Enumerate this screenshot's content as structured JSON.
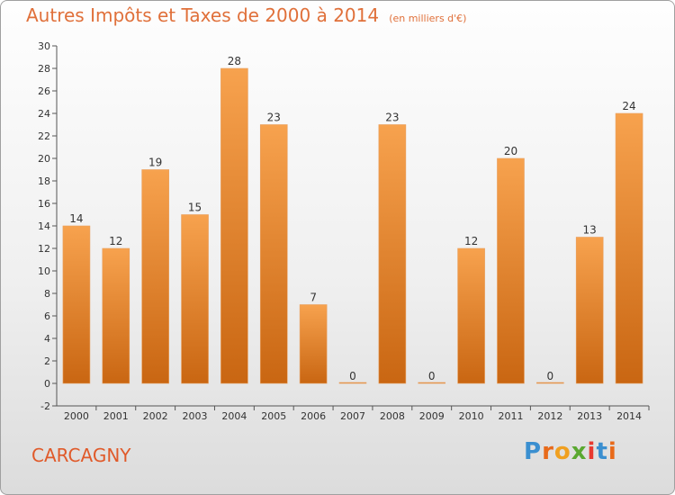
{
  "title": "Autres Impôts et Taxes de 2000 à 2014",
  "unit": "(en milliers d'€)",
  "city": "CARCAGNY",
  "logo": "Proxiti",
  "colors": {
    "bar_light": "#f7a24e",
    "bar_dark": "#c96612",
    "title": "#e0703a",
    "city": "#e05a2a"
  },
  "chart_data": {
    "type": "bar",
    "title": "Autres Impôts et Taxes de 2000 à 2014",
    "ylabel": "",
    "xlabel": "",
    "categories": [
      "2000",
      "2001",
      "2002",
      "2003",
      "2004",
      "2005",
      "2006",
      "2007",
      "2008",
      "2009",
      "2010",
      "2011",
      "2012",
      "2013",
      "2014"
    ],
    "values": [
      14,
      12,
      19,
      15,
      28,
      23,
      7,
      0,
      23,
      0,
      12,
      20,
      0,
      13,
      24
    ],
    "ylim": [
      -2,
      30
    ],
    "yticks": [
      -2,
      0,
      2,
      4,
      6,
      8,
      10,
      12,
      14,
      16,
      18,
      20,
      22,
      24,
      26,
      28,
      30
    ],
    "grid": false,
    "legend": "none"
  }
}
